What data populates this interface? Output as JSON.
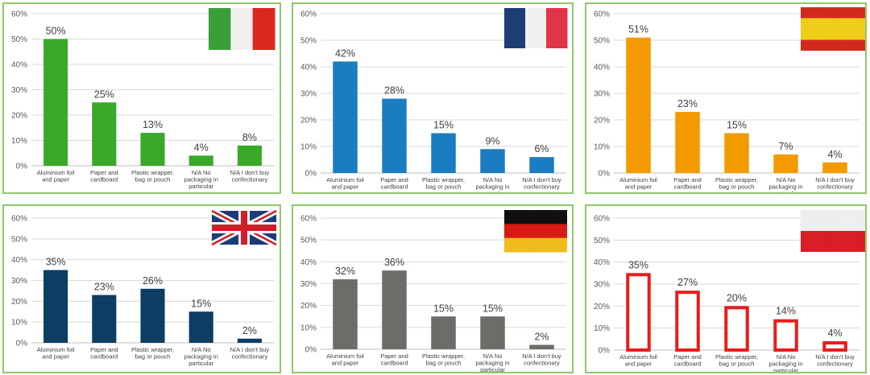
{
  "chart_data": [
    {
      "type": "bar",
      "country_flag": "Italy",
      "categories": [
        "Aluminium foil and paper",
        "Paper and cardboard",
        "Plastic wrapper, bag or pouch",
        "N/A No packaging in particular",
        "N/A I don't buy confectionary"
      ],
      "values": [
        50,
        25,
        13,
        4,
        8
      ],
      "labels": [
        "50%",
        "25%",
        "13%",
        "4%",
        "8%"
      ],
      "yticks": [
        "0%",
        "10%",
        "20%",
        "30%",
        "40%",
        "50%",
        "60%"
      ],
      "ylim": [
        0,
        60
      ],
      "color": "#3aa829",
      "style": "filled"
    },
    {
      "type": "bar",
      "country_flag": "France",
      "categories": [
        "Aluminium foil and paper",
        "Paper and cardboard",
        "Plastic wrapper, bag or pouch",
        "N/A No packaging in particular",
        "N/A I don't buy confectionary"
      ],
      "values": [
        42,
        28,
        15,
        9,
        6
      ],
      "labels": [
        "42%",
        "28%",
        "15%",
        "9%",
        "6%"
      ],
      "yticks": [
        "0%",
        "10%",
        "20%",
        "30%",
        "40%",
        "50%",
        "60%"
      ],
      "ylim": [
        0,
        60
      ],
      "color": "#1a7dc1",
      "style": "filled"
    },
    {
      "type": "bar",
      "country_flag": "Spain",
      "categories": [
        "Aluminium foil and paper",
        "Paper and cardboard",
        "Plastic wrapper, bag or pouch",
        "N/A No packaging in particular",
        "N/A I don't buy confectionary"
      ],
      "values": [
        51,
        23,
        15,
        7,
        4
      ],
      "labels": [
        "51%",
        "23%",
        "15%",
        "7%",
        "4%"
      ],
      "yticks": [
        "0%",
        "10%",
        "20%",
        "30%",
        "40%",
        "50%",
        "60%"
      ],
      "ylim": [
        0,
        60
      ],
      "color": "#f29a00",
      "style": "filled"
    },
    {
      "type": "bar",
      "country_flag": "United Kingdom",
      "categories": [
        "Aluminium foil and paper",
        "Paper and cardboard",
        "Plastic wrapper, bag or pouch",
        "N/A No packaging in particular",
        "N/A I don't buy confectionary"
      ],
      "values": [
        35,
        23,
        26,
        15,
        2
      ],
      "labels": [
        "35%",
        "23%",
        "26%",
        "15%",
        "2%"
      ],
      "yticks": [
        "0%",
        "10%",
        "20%",
        "30%",
        "40%",
        "50%",
        "60%"
      ],
      "ylim": [
        0,
        60
      ],
      "color": "#0c3d63",
      "style": "filled"
    },
    {
      "type": "bar",
      "country_flag": "Germany",
      "categories": [
        "Aluminium foil and paper",
        "Paper and cardboard",
        "Plastic wrapper, bag or pouch",
        "N/A No packaging in particular",
        "N/A I don't buy confectionary"
      ],
      "values": [
        32,
        36,
        15,
        15,
        2
      ],
      "labels": [
        "32%",
        "36%",
        "15%",
        "15%",
        "2%"
      ],
      "yticks": [
        "0%",
        "10%",
        "20%",
        "30%",
        "40%",
        "50%",
        "60%"
      ],
      "ylim": [
        0,
        60
      ],
      "color": "#6d6c68",
      "style": "filled"
    },
    {
      "type": "bar",
      "country_flag": "Poland",
      "categories": [
        "Aluminium foil and paper",
        "Paper and cardboard",
        "Plastic wrapper, bag or pouch",
        "N/A No packaging in particular",
        "N/A I don't buy confectionary"
      ],
      "values": [
        35,
        27,
        20,
        14,
        4
      ],
      "labels": [
        "35%",
        "27%",
        "20%",
        "14%",
        "4%"
      ],
      "yticks": [
        "0%",
        "10%",
        "20%",
        "30%",
        "40%",
        "50%",
        "60%"
      ],
      "ylim": [
        0,
        60
      ],
      "color": "#e81c1c",
      "style": "outline"
    }
  ],
  "category_lines": [
    [
      "Aluminium foil",
      "and paper"
    ],
    [
      "Paper and",
      "cardboard"
    ],
    [
      "Plastic wrapper,",
      "bag or pouch"
    ],
    [
      "N/A No",
      "packaging in",
      "particular"
    ],
    [
      "N/A I don't buy",
      "confectionary"
    ]
  ],
  "flags": {
    "italy": [
      "#3aa33a",
      "#f4f4f4",
      "#e0281d"
    ],
    "france": [
      "#1f3f78",
      "#f4f4f4",
      "#e3354a"
    ],
    "spain": [
      "#d62a1e",
      "#f2d21a"
    ],
    "germany": [
      "#111111",
      "#dd1a14",
      "#f2bf1c"
    ],
    "poland": [
      "#f2f2f2",
      "#dc1f26"
    ],
    "uk": [
      "#1d3d7a",
      "#ffffff",
      "#d41f2a"
    ]
  }
}
